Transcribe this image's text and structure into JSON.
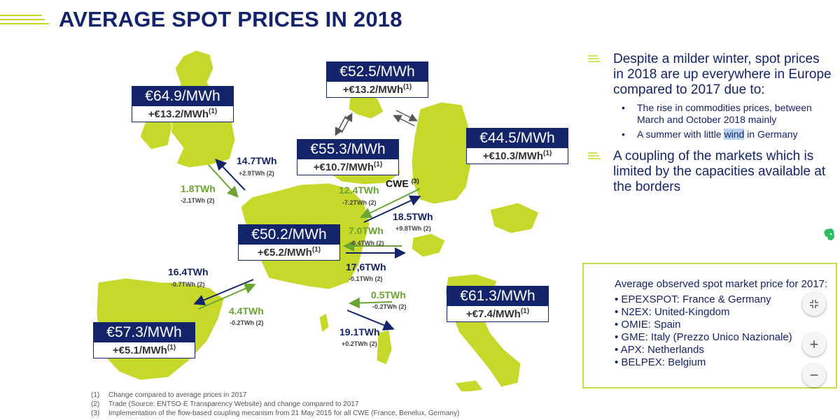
{
  "title": "AVERAGE SPOT PRICES IN 2018",
  "colors": {
    "navy": "#14246b",
    "green": "#6aa431",
    "map_fill": "#c6d82a"
  },
  "regions": {
    "uk": {
      "price": "€64.9/MWh",
      "change": "+€13.2/MWh",
      "note": "(1)"
    },
    "nordic": {
      "price": "€52.5/MWh",
      "change": "+€13.2/MWh",
      "note": "(1)"
    },
    "benelux": {
      "price": "€55.3/MWh",
      "change": "+€10.7/MWh",
      "note": "(1)"
    },
    "germany": {
      "price": "€44.5/MWh",
      "change": "+€10.3/MWh",
      "note": "(1)"
    },
    "france": {
      "price": "€50.2/MWh",
      "change": "+€5.2/MWh",
      "note": "(1)"
    },
    "italy": {
      "price": "€61.3/MWh",
      "change": "+€7.4/MWh",
      "note": "(1)"
    },
    "spain": {
      "price": "€57.3/MWh",
      "change": "+€5.1/MWh",
      "note": "(1)"
    }
  },
  "flows": {
    "uk_fr_blue": {
      "value": "14.7TWh",
      "delta": "+2.9TWh (2)"
    },
    "uk_fr_green": {
      "value": "1.8TWh",
      "delta": "-2.1TWh (2)"
    },
    "cwe_green": {
      "value": "12.4TWh",
      "delta": "-7.2TWh (2)"
    },
    "cwe_blue": {
      "value": "18.5TWh",
      "delta": "+9.8TWh (2)"
    },
    "ch_green": {
      "value": "7.0TWh",
      "delta": "-0.4TWh (2)"
    },
    "ch_blue": {
      "value": "17,6TWh",
      "delta": "-0.1TWh (2)"
    },
    "es_blue": {
      "value": "16.4TWh",
      "delta": "-0.7TWh (2)"
    },
    "es_green": {
      "value": "4.4TWh",
      "delta": "-0.2TWh (2)"
    },
    "it_green": {
      "value": "0.5TWh",
      "delta": "-0.2TWh (2)"
    },
    "it_blue": {
      "value": "19.1TWh",
      "delta": "+0.2TWh (2)"
    }
  },
  "cwe_label": "CWE",
  "cwe_note": "(3)",
  "bullets": {
    "main1": "Despite a milder winter, spot prices in 2018 are up everywhere in Europe compared to 2017 due to:",
    "sub1": "The rise in commodities prices, between March and October 2018 mainly",
    "sub2_pre": "A summer with little ",
    "sub2_hl": "wind",
    "sub2_post": " in Germany",
    "main2": "A coupling of the markets which is limited by the capacities available at the borders"
  },
  "legend": {
    "title": "Average observed spot market price for 2017:",
    "items": [
      "EPEXSPOT: France & Germany",
      "N2EX: United-Kingdom",
      "OMIE: Spain",
      "GME: Italy (Prezzo Unico Nazionale)",
      "APX: Netherlands",
      "BELPEX: Belgium"
    ]
  },
  "footnotes": [
    {
      "n": "(1)",
      "text": "Change compared to average prices in 2017"
    },
    {
      "n": "(2)",
      "text": "Trade (Source: ENTSO-E Transparency Website) and change compared to 2017"
    },
    {
      "n": "(3)",
      "text": "Implementation of the flow-based coupling mecanism from 21 May 2015 for all CWE (France, Benelux, Germany)"
    }
  ],
  "zoom": {
    "collapse_icon": "collapse-icon",
    "plus": "+",
    "minus": "−"
  }
}
